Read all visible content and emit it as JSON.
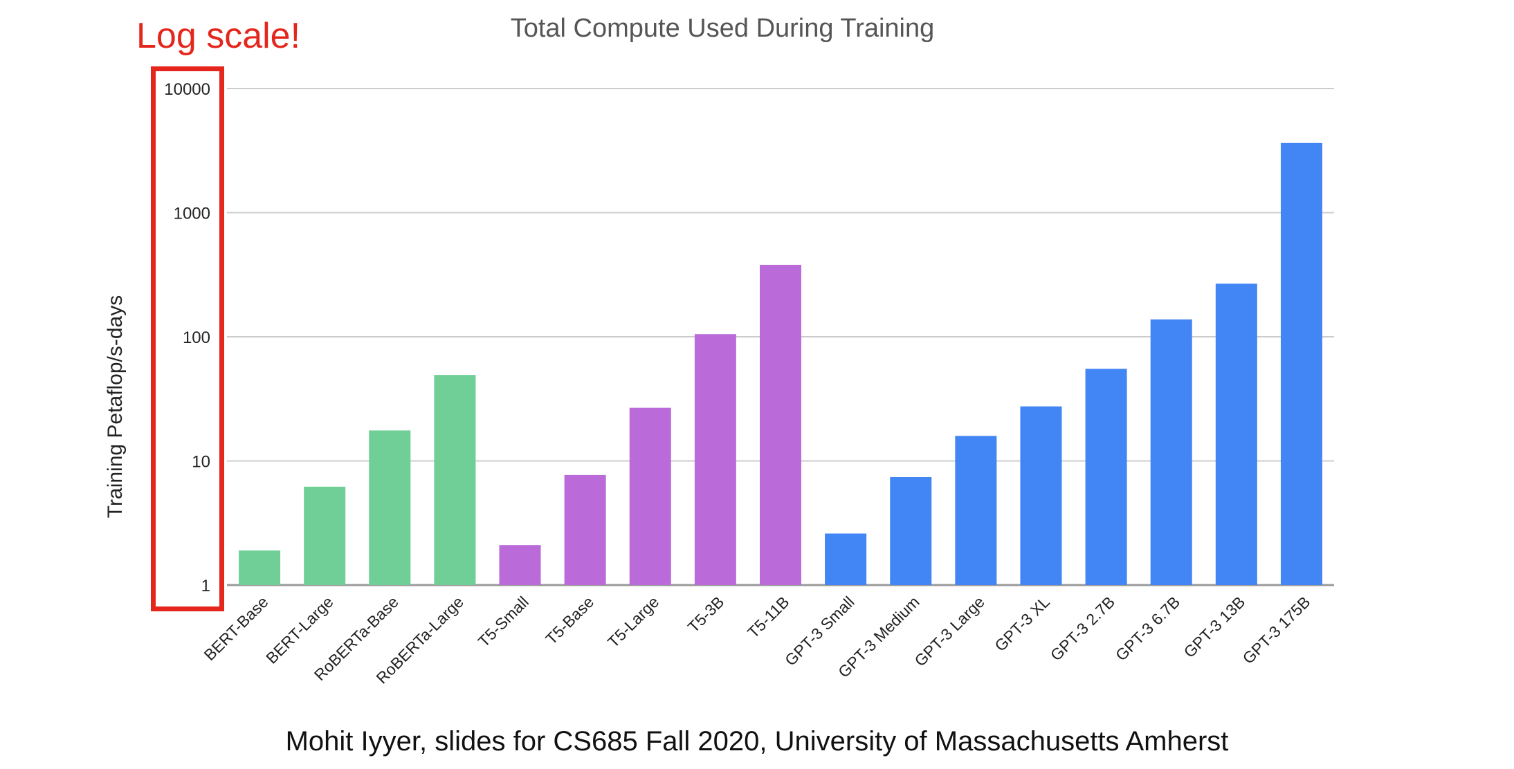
{
  "annotation": "Log scale!",
  "footer": "Mohit Iyyer, slides for CS685 Fall 2020, University of Massachusetts Amherst",
  "colors": {
    "bert": "#6fcf97",
    "t5": "#bb6bd9",
    "gpt3": "#4285f4",
    "highlight": "#e5261c",
    "grid": "#cccccc"
  },
  "chart_data": {
    "type": "bar",
    "title": "Total Compute Used During Training",
    "ylabel": "Training  Petaflop/s-days",
    "xlabel": "",
    "yscale": "log",
    "ylim": [
      1,
      10000
    ],
    "yticks": [
      "1",
      "10",
      "100",
      "1000",
      "10000"
    ],
    "grid": true,
    "categories": [
      "BERT-Base",
      "BERT-Large",
      "RoBERTa-Base",
      "RoBERTa-Large",
      "T5-Small",
      "T5-Base",
      "T5-Large",
      "T5-3B",
      "T5-11B",
      "GPT-3 Small",
      "GPT-3 Medium",
      "GPT-3 Large",
      "GPT-3 XL",
      "GPT-3 2.7B",
      "GPT-3 6.7B",
      "GPT-3 13B",
      "GPT-3 175B"
    ],
    "values": [
      1.9,
      6.2,
      17.6,
      49.3,
      2.1,
      7.7,
      26.8,
      105,
      380,
      2.6,
      7.4,
      15.9,
      27.5,
      55.2,
      138,
      268,
      3640
    ],
    "groups": [
      "bert",
      "bert",
      "bert",
      "bert",
      "t5",
      "t5",
      "t5",
      "t5",
      "t5",
      "gpt3",
      "gpt3",
      "gpt3",
      "gpt3",
      "gpt3",
      "gpt3",
      "gpt3",
      "gpt3"
    ]
  }
}
